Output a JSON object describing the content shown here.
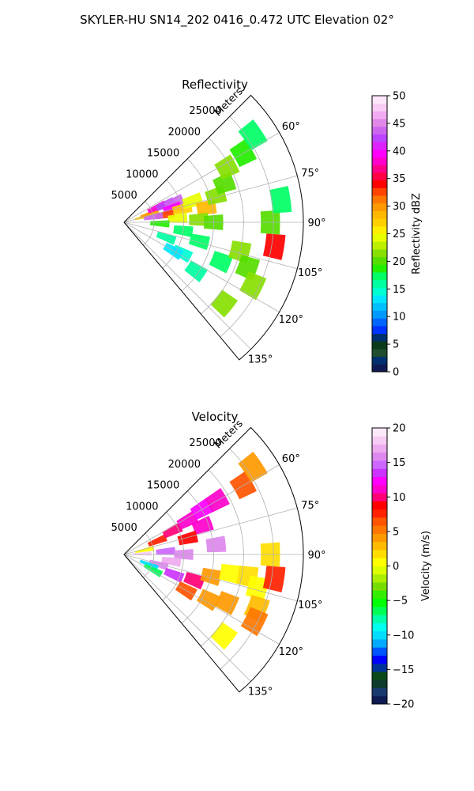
{
  "figure": {
    "suptitle": "SKYLER-HU  SN14_202  0416_0.472 UTC Elevation 02°"
  },
  "chart_data": [
    {
      "type": "heatmap",
      "subtype": "polar-sector-ppi",
      "title": "Reflectivity",
      "radial_label": "Meters",
      "radial_ticks": [
        "5000",
        "10000",
        "15000",
        "20000",
        "25000"
      ],
      "angle_ticks": [
        "60°",
        "75°",
        "90°",
        "105°",
        "120°",
        "135°"
      ],
      "r_range": [
        0,
        30000
      ],
      "theta_range_deg": [
        45,
        140
      ],
      "grid": true,
      "colorbar": {
        "label": "Reflectivity dBZ",
        "range": [
          0,
          50
        ],
        "ticks": [
          "0",
          "5",
          "10",
          "15",
          "20",
          "25",
          "30",
          "35",
          "40",
          "45",
          "50"
        ],
        "palette": [
          "#0d1b52",
          "#00306e",
          "#1f4d2e",
          "#0a3a1a",
          "#00306e",
          "#0033ff",
          "#0066ff",
          "#0099ff",
          "#00bfff",
          "#00e5ff",
          "#00ffd0",
          "#00ffa0",
          "#00ff66",
          "#22ee00",
          "#55dd00",
          "#88e000",
          "#bbf000",
          "#e8ff00",
          "#ffee00",
          "#ffd000",
          "#ffb800",
          "#ff9900",
          "#ff7700",
          "#ff4400",
          "#ff0000",
          "#ff0044",
          "#ff0088",
          "#ff00cc",
          "#ff00ff",
          "#dd22ff",
          "#bb44ff",
          "#cc66ee",
          "#e088e8",
          "#f2aaf0",
          "#f8ccf4",
          "#fce6fa"
        ]
      },
      "cells": [
        {
          "r": 3500,
          "t": 75,
          "v": 27
        },
        {
          "r": 4500,
          "t": 72,
          "v": 30
        },
        {
          "r": 6000,
          "t": 66,
          "v": 38
        },
        {
          "r": 7500,
          "t": 67,
          "v": 42
        },
        {
          "r": 9000,
          "t": 68,
          "v": 44
        },
        {
          "r": 8500,
          "t": 74,
          "v": 40
        },
        {
          "r": 7000,
          "t": 80,
          "v": 33
        },
        {
          "r": 10000,
          "t": 77,
          "v": 27
        },
        {
          "r": 12000,
          "t": 73,
          "v": 24
        },
        {
          "r": 14000,
          "t": 80,
          "v": 28
        },
        {
          "r": 16000,
          "t": 74,
          "v": 22
        },
        {
          "r": 18000,
          "t": 69,
          "v": 20
        },
        {
          "r": 19500,
          "t": 62,
          "v": 22
        },
        {
          "r": 9000,
          "t": 86,
          "v": 24
        },
        {
          "r": 12500,
          "t": 88,
          "v": 21
        },
        {
          "r": 15000,
          "t": 90,
          "v": 20
        },
        {
          "r": 6000,
          "t": 92,
          "v": 19
        },
        {
          "r": 10000,
          "t": 98,
          "v": 18
        },
        {
          "r": 13000,
          "t": 104,
          "v": 17
        },
        {
          "r": 7500,
          "t": 110,
          "v": 16
        },
        {
          "r": 11000,
          "t": 118,
          "v": 15
        },
        {
          "r": 14500,
          "t": 124,
          "v": 16
        },
        {
          "r": 17500,
          "t": 112,
          "v": 17
        },
        {
          "r": 20000,
          "t": 104,
          "v": 21
        },
        {
          "r": 22000,
          "t": 110,
          "v": 20
        },
        {
          "r": 24000,
          "t": 116,
          "v": 22
        },
        {
          "r": 25500,
          "t": 99,
          "v": 34
        },
        {
          "r": 24500,
          "t": 90,
          "v": 20
        },
        {
          "r": 26500,
          "t": 82,
          "v": 18
        },
        {
          "r": 23000,
          "t": 60,
          "v": 19
        },
        {
          "r": 26000,
          "t": 56,
          "v": 17
        },
        {
          "r": 21500,
          "t": 129,
          "v": 22
        },
        {
          "r": 9500,
          "t": 120,
          "v": 13
        },
        {
          "r": 5000,
          "t": 80,
          "v": 44
        }
      ]
    },
    {
      "type": "heatmap",
      "subtype": "polar-sector-ppi",
      "title": "Velocity",
      "radial_label": "Meters",
      "radial_ticks": [
        "5000",
        "10000",
        "15000",
        "20000",
        "25000"
      ],
      "angle_ticks": [
        "60°",
        "75°",
        "90°",
        "105°",
        "120°",
        "135°"
      ],
      "r_range": [
        0,
        30000
      ],
      "theta_range_deg": [
        45,
        140
      ],
      "grid": true,
      "colorbar": {
        "label": "Velocity (m/s)",
        "range": [
          -20,
          20
        ],
        "ticks": [
          "−20",
          "−15",
          "−10",
          "−5",
          "0",
          "5",
          "10",
          "15",
          "20"
        ],
        "palette": [
          "#0d1b52",
          "#1a3a6e",
          "#0f3a2e",
          "#0a4a1a",
          "#003399",
          "#0000ff",
          "#0055ff",
          "#00aaff",
          "#00ddff",
          "#00ffee",
          "#00ffaa",
          "#00ff55",
          "#00ff00",
          "#33ee00",
          "#77dd00",
          "#aaee00",
          "#ddff00",
          "#ffff00",
          "#ffdd00",
          "#ffbb00",
          "#ff9900",
          "#ff7700",
          "#ff5500",
          "#ff2200",
          "#ff0000",
          "#ff0077",
          "#ff00cc",
          "#ff00ff",
          "#cc33ff",
          "#cc66ff",
          "#dd88ee",
          "#eeaaee",
          "#f6ccf4",
          "#fbe8f8"
        ]
      },
      "cells": [
        {
          "r": 3500,
          "t": 78,
          "v": 1
        },
        {
          "r": 6000,
          "t": 68,
          "v": 8
        },
        {
          "r": 9000,
          "t": 64,
          "v": 10
        },
        {
          "r": 12000,
          "t": 62,
          "v": 11
        },
        {
          "r": 15000,
          "t": 60,
          "v": 12
        },
        {
          "r": 18000,
          "t": 60,
          "v": 11
        },
        {
          "r": 14000,
          "t": 70,
          "v": 11
        },
        {
          "r": 11000,
          "t": 76,
          "v": 9
        },
        {
          "r": 7000,
          "t": 86,
          "v": 15
        },
        {
          "r": 10000,
          "t": 90,
          "v": 16
        },
        {
          "r": 8000,
          "t": 98,
          "v": 17
        },
        {
          "r": 6000,
          "t": 106,
          "v": 16
        },
        {
          "r": 4500,
          "t": 112,
          "v": -10
        },
        {
          "r": 5500,
          "t": 118,
          "v": -7
        },
        {
          "r": 9000,
          "t": 112,
          "v": 14
        },
        {
          "r": 12500,
          "t": 110,
          "v": 10
        },
        {
          "r": 15000,
          "t": 104,
          "v": 4
        },
        {
          "r": 18000,
          "t": 100,
          "v": 1
        },
        {
          "r": 21000,
          "t": 100,
          "v": 2
        },
        {
          "r": 23000,
          "t": 104,
          "v": 1
        },
        {
          "r": 24000,
          "t": 112,
          "v": 3
        },
        {
          "r": 24500,
          "t": 117,
          "v": 5
        },
        {
          "r": 19000,
          "t": 115,
          "v": 4
        },
        {
          "r": 16000,
          "t": 118,
          "v": 4
        },
        {
          "r": 12000,
          "t": 120,
          "v": 7
        },
        {
          "r": 25500,
          "t": 99,
          "v": 8
        },
        {
          "r": 24500,
          "t": 90,
          "v": 2
        },
        {
          "r": 23000,
          "t": 60,
          "v": 6
        },
        {
          "r": 26000,
          "t": 56,
          "v": 4
        },
        {
          "r": 21500,
          "t": 129,
          "v": 1
        },
        {
          "r": 3000,
          "t": 88,
          "v": 18
        },
        {
          "r": 15500,
          "t": 84,
          "v": 16
        }
      ]
    }
  ]
}
